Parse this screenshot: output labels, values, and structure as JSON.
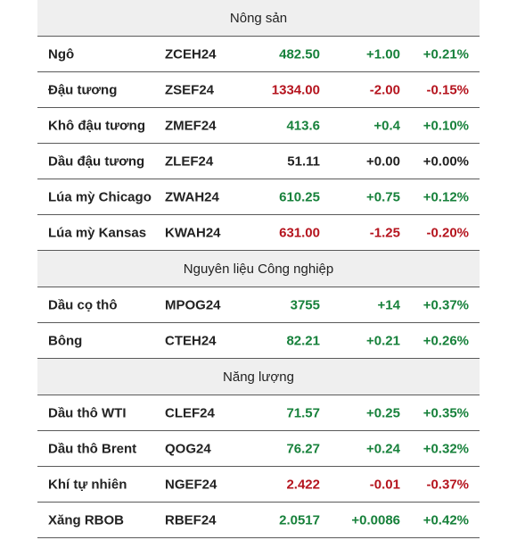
{
  "colors": {
    "up": "#17813b",
    "down": "#b5141e",
    "flat": "#222222",
    "header_bg": "#efefef"
  },
  "sections": [
    {
      "title": "Nông sản",
      "rows": [
        {
          "name": "Ngô",
          "code": "ZCEH24",
          "price": "482.50",
          "change": "+1.00",
          "pct": "+0.21%",
          "price_dir": "up",
          "dir": "up"
        },
        {
          "name": "Đậu tương",
          "code": "ZSEF24",
          "price": "1334.00",
          "change": "-2.00",
          "pct": "-0.15%",
          "price_dir": "down",
          "dir": "down"
        },
        {
          "name": "Khô đậu tương",
          "code": "ZMEF24",
          "price": "413.6",
          "change": "+0.4",
          "pct": "+0.10%",
          "price_dir": "up",
          "dir": "up"
        },
        {
          "name": "Dầu đậu tương",
          "code": "ZLEF24",
          "price": "51.11",
          "change": "+0.00",
          "pct": "+0.00%",
          "price_dir": "flat",
          "dir": "flat"
        },
        {
          "name": "Lúa mỳ Chicago",
          "code": "ZWAH24",
          "price": "610.25",
          "change": "+0.75",
          "pct": "+0.12%",
          "price_dir": "up",
          "dir": "up"
        },
        {
          "name": "Lúa mỳ Kansas",
          "code": "KWAH24",
          "price": "631.00",
          "change": "-1.25",
          "pct": "-0.20%",
          "price_dir": "down",
          "dir": "down"
        }
      ]
    },
    {
      "title": "Nguyên liệu Công nghiệp",
      "rows": [
        {
          "name": "Dầu cọ thô",
          "code": "MPOG24",
          "price": "3755",
          "change": "+14",
          "pct": "+0.37%",
          "price_dir": "up",
          "dir": "up"
        },
        {
          "name": "Bông",
          "code": "CTEH24",
          "price": "82.21",
          "change": "+0.21",
          "pct": "+0.26%",
          "price_dir": "up",
          "dir": "up"
        }
      ]
    },
    {
      "title": "Năng lượng",
      "rows": [
        {
          "name": "Dầu thô WTI",
          "code": "CLEF24",
          "price": "71.57",
          "change": "+0.25",
          "pct": "+0.35%",
          "price_dir": "up",
          "dir": "up"
        },
        {
          "name": "Dầu thô Brent",
          "code": "QOG24",
          "price": "76.27",
          "change": "+0.24",
          "pct": "+0.32%",
          "price_dir": "up",
          "dir": "up"
        },
        {
          "name": "Khí tự nhiên",
          "code": "NGEF24",
          "price": "2.422",
          "change": "-0.01",
          "pct": "-0.37%",
          "price_dir": "down",
          "dir": "down"
        },
        {
          "name": "Xăng RBOB",
          "code": "RBEF24",
          "price": "2.0517",
          "change": "+0.0086",
          "pct": "+0.42%",
          "price_dir": "up",
          "dir": "up"
        }
      ]
    }
  ]
}
